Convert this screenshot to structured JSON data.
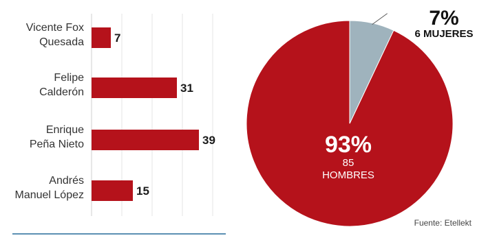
{
  "chart_data": [
    {
      "type": "bar",
      "orientation": "horizontal",
      "categories": [
        [
          "Vicente Fox",
          "Quesada"
        ],
        [
          "Felipe",
          "Calderón"
        ],
        [
          "Enrique",
          "Peña Nieto"
        ],
        [
          "Andrés",
          "Manuel López"
        ]
      ],
      "values": [
        7,
        31,
        39,
        15
      ],
      "data_labels": [
        "7",
        "31",
        "39",
        "15"
      ],
      "xlim": [
        0,
        45
      ],
      "grid": true,
      "color": "#b5121b"
    },
    {
      "type": "pie",
      "slices": [
        {
          "value": 93,
          "pct_label": "93%",
          "count_label": "85",
          "group_label": "HOMBRES",
          "color": "#b5121b"
        },
        {
          "value": 7,
          "pct_label": "7%",
          "group_label": "6 MUJERES",
          "color": "#9fb3bd"
        }
      ]
    }
  ],
  "source": "Fuente: Etellekt"
}
